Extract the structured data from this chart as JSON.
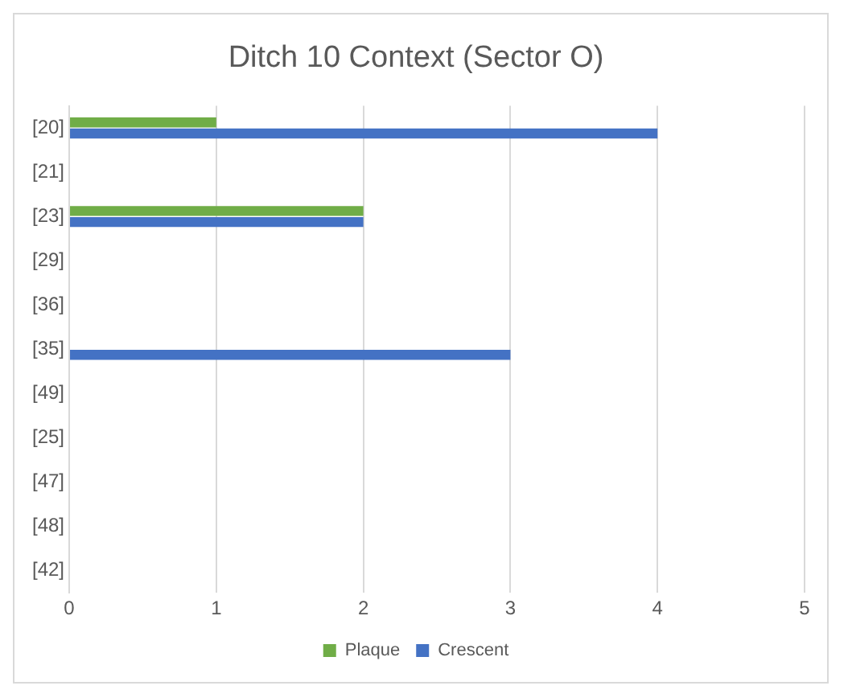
{
  "chart_data": {
    "type": "bar",
    "orientation": "horizontal",
    "title": "Ditch 10 Context (Sector O)",
    "categories": [
      "[20]",
      "[21]",
      "[23]",
      "[29]",
      "[36]",
      "[35]",
      "[49]",
      "[25]",
      "[47]",
      "[48]",
      "[42]"
    ],
    "series": [
      {
        "name": "Plaque",
        "color": "#70ad47",
        "values": [
          1,
          0,
          2,
          0,
          0,
          0,
          0,
          0,
          0,
          0,
          0
        ]
      },
      {
        "name": "Crescent",
        "color": "#4472c4",
        "values": [
          4,
          0,
          2,
          0,
          0,
          3,
          0,
          0,
          0,
          0,
          0
        ]
      }
    ],
    "xlim": [
      0,
      5
    ],
    "xticks": [
      0,
      1,
      2,
      3,
      4,
      5
    ],
    "grid": "x",
    "legend": "bottom"
  }
}
